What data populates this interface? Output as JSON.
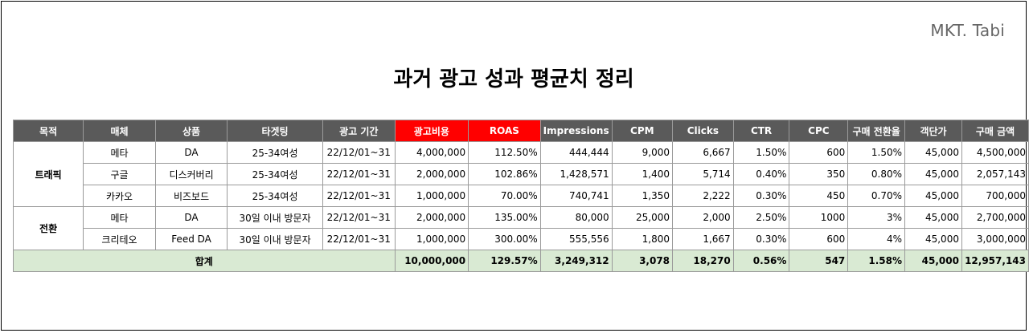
{
  "brand": "MKT. Tabi",
  "title": "과거 광고 성과 평균치 정리",
  "headers": {
    "purpose": "목적",
    "media": "매체",
    "product": "상품",
    "targeting": "타겟팅",
    "period": "광고 기간",
    "cost": "광고비용",
    "roas": "ROAS",
    "impressions": "Impressions",
    "cpm": "CPM",
    "clicks": "Clicks",
    "ctr": "CTR",
    "cpc": "CPC",
    "cvr": "구매 전환율",
    "aov": "객단가",
    "revenue": "구매 금액"
  },
  "groups": {
    "traffic": "트래픽",
    "conversion": "전환"
  },
  "rows": [
    {
      "media": "메타",
      "product": "DA",
      "targeting": "25-34여성",
      "period": "22/12/01~31",
      "cost": "4,000,000",
      "roas": "112.50%",
      "impressions": "444,444",
      "cpm": "9,000",
      "clicks": "6,667",
      "ctr": "1.50%",
      "cpc": "600",
      "cvr": "1.50%",
      "aov": "45,000",
      "revenue": "4,500,000"
    },
    {
      "media": "구글",
      "product": "디스커버리",
      "targeting": "25-34여성",
      "period": "22/12/01~31",
      "cost": "2,000,000",
      "roas": "102.86%",
      "impressions": "1,428,571",
      "cpm": "1,400",
      "clicks": "5,714",
      "ctr": "0.40%",
      "cpc": "350",
      "cvr": "0.80%",
      "aov": "45,000",
      "revenue": "2,057,143"
    },
    {
      "media": "카카오",
      "product": "비즈보드",
      "targeting": "25-34여성",
      "period": "22/12/01~31",
      "cost": "1,000,000",
      "roas": "70.00%",
      "impressions": "740,741",
      "cpm": "1,350",
      "clicks": "2,222",
      "ctr": "0.30%",
      "cpc": "450",
      "cvr": "0.70%",
      "aov": "45,000",
      "revenue": "700,000"
    },
    {
      "media": "메타",
      "product": "DA",
      "targeting": "30일 이내 방문자",
      "period": "22/12/01~31",
      "cost": "2,000,000",
      "roas": "135.00%",
      "impressions": "80,000",
      "cpm": "25,000",
      "clicks": "2,000",
      "ctr": "2.50%",
      "cpc": "1000",
      "cvr": "3%",
      "aov": "45,000",
      "revenue": "2,700,000"
    },
    {
      "media": "크리테오",
      "product": "Feed DA",
      "targeting": "30일 이내 방문자",
      "period": "22/12/01~31",
      "cost": "1,000,000",
      "roas": "300.00%",
      "impressions": "555,556",
      "cpm": "1,800",
      "clicks": "1,667",
      "ctr": "0.30%",
      "cpc": "600",
      "cvr": "4%",
      "aov": "45,000",
      "revenue": "3,000,000"
    }
  ],
  "total": {
    "label": "합계",
    "cost": "10,000,000",
    "roas": "129.57%",
    "impressions": "3,249,312",
    "cpm": "3,078",
    "clicks": "18,270",
    "ctr": "0.56%",
    "cpc": "547",
    "cvr": "1.58%",
    "aov": "45,000",
    "revenue": "12,957,143"
  },
  "colors": {
    "header_bg": "#5a5a5a",
    "header_highlight": "#ff0000",
    "total_bg": "#d9ead3"
  }
}
